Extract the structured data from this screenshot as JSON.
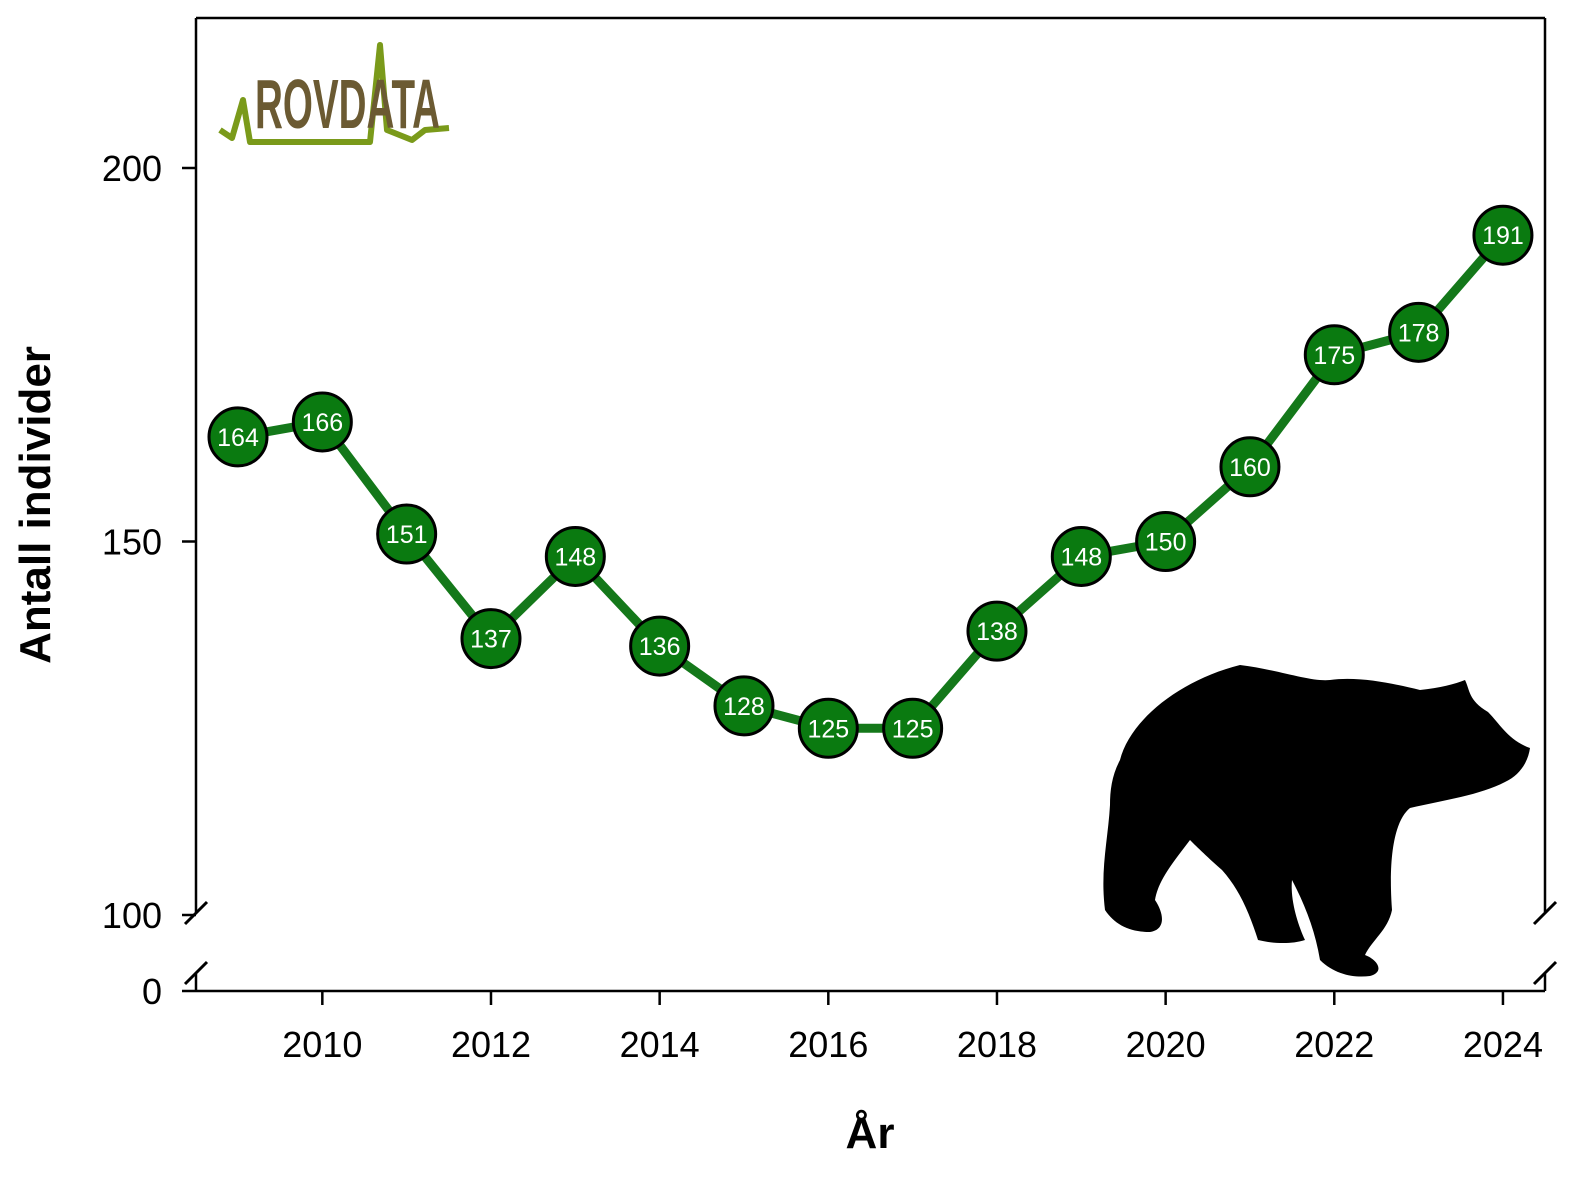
{
  "chart_data": {
    "type": "line",
    "x": [
      2009,
      2010,
      2011,
      2012,
      2013,
      2014,
      2015,
      2016,
      2017,
      2018,
      2019,
      2020,
      2021,
      2022,
      2023,
      2024
    ],
    "series": [
      {
        "values": [
          164,
          166,
          151,
          137,
          148,
          136,
          128,
          125,
          125,
          138,
          148,
          150,
          160,
          175,
          178,
          191
        ]
      }
    ],
    "data_labels": [
      "164",
      "166",
      "151",
      "137",
      "148",
      "136",
      "128",
      "125",
      "125",
      "138",
      "148",
      "150",
      "160",
      "175",
      "178",
      "191"
    ],
    "xlabel": "År",
    "ylabel": "Antall individer",
    "x_ticks": [
      2010,
      2012,
      2014,
      2016,
      2018,
      2020,
      2022,
      2024
    ],
    "x_tick_labels": [
      "2010",
      "2012",
      "2014",
      "2016",
      "2018",
      "2020",
      "2022",
      "2024"
    ],
    "y_ticks": [
      100,
      150,
      200
    ],
    "y_tick_labels": [
      "100",
      "150",
      "200"
    ],
    "y_zero_label": "0",
    "xlim": [
      2008.5,
      2024.5
    ],
    "ylim": [
      100,
      220
    ],
    "axis_break": true,
    "grid": false,
    "legend": "none",
    "line_color": "#14781a",
    "marker_color": "#0a7a10"
  },
  "logo": {
    "text": "ROVDATA",
    "text_color": "#6b5a32",
    "line_color": "#7a9a1a"
  },
  "illustration": {
    "icon": "bear-silhouette-icon",
    "color": "#000000"
  }
}
